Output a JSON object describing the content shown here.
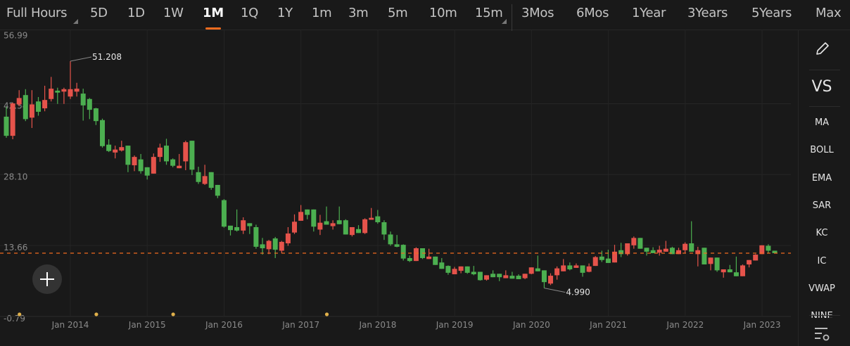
{
  "toolbar": {
    "session_label": "Full Hours",
    "tabs": [
      "5D",
      "1D",
      "1W",
      "1M",
      "1Q",
      "1Y",
      "1m",
      "3m",
      "5m",
      "10m",
      "15m",
      "3Mos",
      "6Mos",
      "1Year",
      "3Years",
      "5Years",
      "Max"
    ],
    "active_tab": "1M",
    "accent_color": "#f26c1f"
  },
  "side_panel": {
    "draw_icon": "pencil-icon",
    "vs_label": "VS",
    "indicators": [
      "MA",
      "BOLL",
      "EMA",
      "SAR",
      "KC",
      "IC",
      "VWAP",
      "NINE"
    ],
    "settings_icon": "list-settings-icon"
  },
  "add_button_icon": "plus-icon",
  "chart_data": {
    "type": "candlestick",
    "interval": "1M",
    "up_color": "#e5534b",
    "down_color": "#4caf50",
    "y_ticks": [
      "56.99",
      "42.54",
      "28.10",
      "13.66",
      "-0.79"
    ],
    "ylim": [
      -0.79,
      56.99
    ],
    "x_ticks": [
      "Jan 2014",
      "Jan 2015",
      "Jan 2016",
      "Jan 2017",
      "Jan 2018",
      "Jan 2019",
      "Jan 2020",
      "Jan 2021",
      "Jan 2022",
      "Jan 2023"
    ],
    "grid": true,
    "current_price_line": 12.1,
    "annotations": [
      {
        "label": "51.208",
        "value": 51.208,
        "date": "2014-01",
        "kind": "high"
      },
      {
        "label": "4.990",
        "value": 4.99,
        "date": "2020-03",
        "kind": "low"
      }
    ],
    "event_markers": [
      "2013-05",
      "2014-05",
      "2015-05",
      "2017-05"
    ],
    "columns": [
      "date",
      "open",
      "high",
      "low",
      "close"
    ],
    "candles": [
      [
        "2013-03",
        39.9,
        41.9,
        35.6,
        36.0
      ],
      [
        "2013-04",
        36.0,
        42.8,
        35.3,
        42.6
      ],
      [
        "2013-05",
        42.4,
        45.3,
        42.0,
        43.7
      ],
      [
        "2013-06",
        44.3,
        45.5,
        39.0,
        39.4
      ],
      [
        "2013-07",
        39.7,
        45.3,
        37.6,
        42.4
      ],
      [
        "2013-08",
        43.0,
        43.9,
        40.1,
        40.9
      ],
      [
        "2013-09",
        41.6,
        46.2,
        41.0,
        43.3
      ],
      [
        "2013-10",
        43.5,
        48.0,
        43.0,
        45.6
      ],
      [
        "2013-11",
        45.2,
        45.8,
        42.5,
        44.8
      ],
      [
        "2013-12",
        45.0,
        45.8,
        42.5,
        45.5
      ],
      [
        "2014-01",
        44.0,
        51.208,
        43.5,
        45.5
      ],
      [
        "2014-02",
        45.0,
        46.8,
        44.0,
        45.6
      ],
      [
        "2014-03",
        44.6,
        45.6,
        39.1,
        42.2
      ],
      [
        "2014-04",
        43.5,
        43.7,
        39.4,
        41.3
      ],
      [
        "2014-05",
        41.6,
        41.7,
        38.2,
        39.0
      ],
      [
        "2014-06",
        39.2,
        39.5,
        33.6,
        33.9
      ],
      [
        "2014-07",
        34.2,
        35.3,
        32.7,
        32.9
      ],
      [
        "2014-08",
        32.6,
        34.0,
        31.4,
        33.2
      ],
      [
        "2014-09",
        33.0,
        35.0,
        32.8,
        33.7
      ],
      [
        "2014-10",
        34.0,
        34.0,
        28.6,
        30.1
      ],
      [
        "2014-11",
        30.0,
        32.0,
        28.8,
        31.7
      ],
      [
        "2014-12",
        31.2,
        32.3,
        28.3,
        28.8
      ],
      [
        "2015-01",
        29.6,
        29.6,
        27.1,
        27.9
      ],
      [
        "2015-02",
        28.3,
        32.4,
        28.3,
        31.7
      ],
      [
        "2015-03",
        31.7,
        34.4,
        30.7,
        33.6
      ],
      [
        "2015-04",
        34.0,
        35.4,
        30.1,
        30.8
      ],
      [
        "2015-05",
        31.2,
        31.4,
        29.6,
        29.9
      ],
      [
        "2015-06",
        29.4,
        32.3,
        29.4,
        29.9
      ],
      [
        "2015-07",
        30.8,
        35.0,
        29.0,
        34.7
      ],
      [
        "2015-08",
        35.0,
        35.0,
        28.0,
        29.1
      ],
      [
        "2015-09",
        28.6,
        29.7,
        26.2,
        26.6
      ],
      [
        "2015-10",
        26.2,
        30.1,
        26.0,
        27.8
      ],
      [
        "2015-11",
        28.6,
        28.6,
        25.0,
        25.4
      ],
      [
        "2015-12",
        26.0,
        26.0,
        23.3,
        23.8
      ],
      [
        "2016-01",
        22.9,
        23.1,
        17.3,
        17.5
      ],
      [
        "2016-02",
        17.7,
        17.7,
        15.7,
        16.8
      ],
      [
        "2016-03",
        17.4,
        21.0,
        16.5,
        16.7
      ],
      [
        "2016-04",
        16.7,
        19.4,
        16.0,
        18.8
      ],
      [
        "2016-05",
        18.2,
        18.2,
        16.0,
        17.6
      ],
      [
        "2016-06",
        17.4,
        17.9,
        13.0,
        13.4
      ],
      [
        "2016-07",
        13.9,
        15.2,
        11.8,
        13.1
      ],
      [
        "2016-08",
        12.9,
        14.8,
        11.9,
        14.6
      ],
      [
        "2016-09",
        15.1,
        15.4,
        11.1,
        12.8
      ],
      [
        "2016-10",
        12.6,
        14.6,
        12.1,
        14.4
      ],
      [
        "2016-11",
        14.1,
        17.4,
        13.6,
        16.1
      ],
      [
        "2016-12",
        16.3,
        20.0,
        16.0,
        18.5
      ],
      [
        "2017-01",
        18.7,
        21.9,
        18.7,
        20.5
      ],
      [
        "2017-02",
        21.0,
        21.0,
        19.0,
        19.9
      ],
      [
        "2017-03",
        21.0,
        21.0,
        16.5,
        17.5
      ],
      [
        "2017-04",
        16.9,
        19.9,
        15.8,
        18.3
      ],
      [
        "2017-05",
        18.6,
        21.6,
        17.9,
        17.9
      ],
      [
        "2017-06",
        17.6,
        18.8,
        16.9,
        18.2
      ],
      [
        "2017-07",
        18.8,
        21.6,
        18.0,
        18.0
      ],
      [
        "2017-08",
        18.8,
        19.0,
        15.9,
        15.9
      ],
      [
        "2017-09",
        15.8,
        17.4,
        15.5,
        17.4
      ],
      [
        "2017-10",
        17.0,
        17.8,
        16.2,
        16.2
      ],
      [
        "2017-11",
        16.2,
        19.2,
        16.0,
        19.0
      ],
      [
        "2017-12",
        18.9,
        21.3,
        18.9,
        19.3
      ],
      [
        "2018-01",
        19.6,
        20.9,
        18.1,
        18.4
      ],
      [
        "2018-02",
        18.4,
        18.8,
        14.8,
        15.9
      ],
      [
        "2018-03",
        15.9,
        16.5,
        13.6,
        13.9
      ],
      [
        "2018-04",
        13.9,
        15.8,
        13.3,
        13.4
      ],
      [
        "2018-05",
        13.8,
        13.9,
        10.6,
        11.0
      ],
      [
        "2018-06",
        11.1,
        11.6,
        10.3,
        10.5
      ],
      [
        "2018-07",
        10.5,
        13.3,
        10.5,
        13.1
      ],
      [
        "2018-08",
        13.1,
        13.1,
        10.9,
        11.1
      ],
      [
        "2018-09",
        10.9,
        13.0,
        10.9,
        11.4
      ],
      [
        "2018-10",
        11.4,
        11.4,
        9.7,
        9.7
      ],
      [
        "2018-11",
        10.2,
        11.1,
        8.9,
        8.9
      ],
      [
        "2018-12",
        9.5,
        9.6,
        7.7,
        8.1
      ],
      [
        "2019-01",
        7.8,
        9.3,
        7.8,
        8.9
      ],
      [
        "2019-02",
        8.5,
        9.4,
        8.0,
        9.4
      ],
      [
        "2019-03",
        9.4,
        9.4,
        7.9,
        8.1
      ],
      [
        "2019-04",
        8.3,
        9.5,
        7.6,
        7.8
      ],
      [
        "2019-05",
        8.3,
        8.3,
        6.5,
        6.6
      ],
      [
        "2019-06",
        6.7,
        7.6,
        6.5,
        7.6
      ],
      [
        "2019-07",
        7.9,
        8.6,
        7.2,
        7.2
      ],
      [
        "2019-08",
        7.9,
        7.9,
        6.4,
        7.2
      ],
      [
        "2019-09",
        7.0,
        8.6,
        7.0,
        7.6
      ],
      [
        "2019-10",
        7.5,
        8.3,
        6.9,
        6.9
      ],
      [
        "2019-11",
        7.5,
        7.8,
        6.8,
        6.8
      ],
      [
        "2019-12",
        7.0,
        7.9,
        6.8,
        7.9
      ],
      [
        "2020-01",
        7.9,
        9.2,
        7.8,
        9.2
      ],
      [
        "2020-02",
        9.0,
        11.6,
        8.4,
        8.4
      ],
      [
        "2020-03",
        8.6,
        8.6,
        4.99,
        6.2
      ],
      [
        "2020-04",
        5.9,
        8.0,
        5.6,
        7.5
      ],
      [
        "2020-05",
        7.6,
        9.4,
        6.7,
        9.0
      ],
      [
        "2020-06",
        8.4,
        10.9,
        8.4,
        9.6
      ],
      [
        "2020-07",
        9.6,
        10.2,
        8.6,
        8.8
      ],
      [
        "2020-08",
        9.1,
        10.0,
        9.1,
        9.6
      ],
      [
        "2020-09",
        9.6,
        9.6,
        7.3,
        8.1
      ],
      [
        "2020-10",
        8.3,
        10.0,
        8.2,
        9.4
      ],
      [
        "2020-11",
        9.5,
        11.5,
        9.5,
        11.3
      ],
      [
        "2020-12",
        11.4,
        12.6,
        10.3,
        10.7
      ],
      [
        "2021-01",
        11.0,
        12.8,
        10.1,
        10.1
      ],
      [
        "2021-02",
        10.2,
        13.8,
        10.2,
        12.4
      ],
      [
        "2021-03",
        12.7,
        14.2,
        11.3,
        11.9
      ],
      [
        "2021-04",
        11.9,
        14.1,
        11.6,
        14.1
      ],
      [
        "2021-05",
        13.7,
        15.5,
        13.0,
        15.2
      ],
      [
        "2021-06",
        15.2,
        15.2,
        13.0,
        13.0
      ],
      [
        "2021-07",
        13.2,
        13.2,
        11.6,
        12.4
      ],
      [
        "2021-08",
        12.7,
        13.3,
        12.1,
        12.1
      ],
      [
        "2021-09",
        12.2,
        13.6,
        11.6,
        12.8
      ],
      [
        "2021-10",
        12.4,
        14.6,
        12.4,
        13.0
      ],
      [
        "2021-11",
        13.2,
        13.4,
        11.9,
        11.9
      ],
      [
        "2021-12",
        11.9,
        13.2,
        11.9,
        12.7
      ],
      [
        "2022-01",
        12.7,
        14.3,
        12.1,
        14.0
      ],
      [
        "2022-02",
        14.1,
        18.6,
        12.4,
        12.4
      ],
      [
        "2022-03",
        11.9,
        13.4,
        9.4,
        12.7
      ],
      [
        "2022-04",
        13.2,
        13.2,
        9.8,
        9.8
      ],
      [
        "2022-05",
        9.9,
        11.2,
        8.6,
        11.2
      ],
      [
        "2022-06",
        11.2,
        11.2,
        8.3,
        8.6
      ],
      [
        "2022-07",
        8.2,
        8.8,
        7.1,
        8.8
      ],
      [
        "2022-08",
        8.8,
        9.7,
        8.2,
        8.2
      ],
      [
        "2022-09",
        8.2,
        11.4,
        7.4,
        7.4
      ],
      [
        "2022-10",
        7.4,
        9.8,
        7.4,
        9.6
      ],
      [
        "2022-11",
        9.8,
        10.7,
        9.2,
        10.7
      ],
      [
        "2022-12",
        10.6,
        11.9,
        10.6,
        11.8
      ],
      [
        "2023-01",
        11.9,
        13.7,
        11.9,
        13.7
      ],
      [
        "2023-02",
        13.6,
        13.9,
        12.1,
        12.6
      ],
      [
        "2023-03",
        12.6,
        12.6,
        12.1,
        12.1
      ]
    ]
  }
}
